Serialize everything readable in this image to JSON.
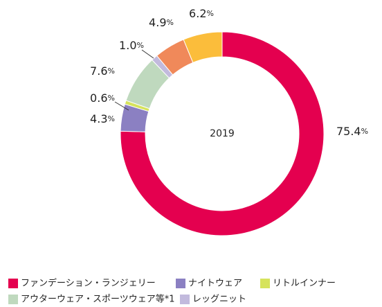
{
  "chart_data": {
    "type": "donut",
    "center_label": "2019",
    "categories": [
      "ファンデーション・ランジェリー",
      "ナイトウェア",
      "リトルインナー",
      "アウターウェア・スポーツウェア等*1",
      "レッグニット",
      null,
      null
    ],
    "values": [
      75.4,
      4.3,
      0.6,
      7.6,
      1.0,
      4.9,
      6.2
    ],
    "value_labels": [
      "75.4%",
      "4.3%",
      "0.6%",
      "7.6%",
      "1.0%",
      "4.9%",
      "6.2%"
    ],
    "colors": [
      "#e4004f",
      "#8b80c2",
      "#d6e35c",
      "#bfd9be",
      "#c2badd",
      "#f0895a",
      "#fbbd3b"
    ],
    "legend": true
  }
}
